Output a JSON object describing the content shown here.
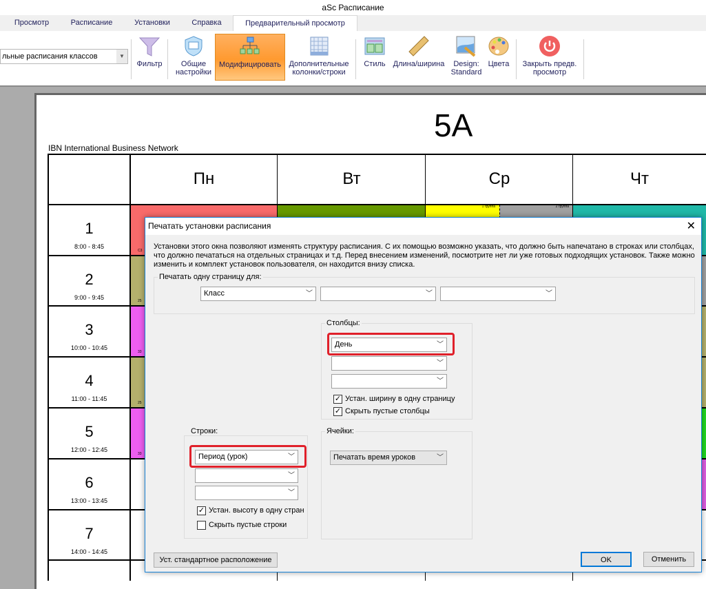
{
  "app": {
    "title": "aSc Расписание"
  },
  "tabs": [
    {
      "label": "Просмотр"
    },
    {
      "label": "Расписание"
    },
    {
      "label": "Установки"
    },
    {
      "label": "Справка"
    },
    {
      "label": "Предварительный просмотр",
      "active": true
    }
  ],
  "ribbon": {
    "combo_value": "льные расписания классов",
    "buttons": [
      {
        "label": "Фильтр",
        "icon": "filter-icon"
      },
      {
        "label": "Общие настройки",
        "icon": "shield-window-icon"
      },
      {
        "label": "Модифицировать",
        "icon": "hierarchy-icon",
        "active": true
      },
      {
        "label": "Дополнительные колонки/строки",
        "icon": "grid-icon"
      },
      {
        "label": "Стиль",
        "icon": "layout-icon"
      },
      {
        "label": "Длина/ширина",
        "icon": "ruler-icon"
      },
      {
        "label": "Design: Standard",
        "icon": "picture-pencil-icon"
      },
      {
        "label": "Цвета",
        "icon": "palette-icon"
      },
      {
        "label": "Закрыть предв. просмотр",
        "icon": "power-icon"
      }
    ]
  },
  "preview": {
    "title": "5A",
    "school": "IBN International Business Network",
    "days": [
      "Пн",
      "Вт",
      "Ср",
      "Чт"
    ],
    "periods": [
      {
        "n": "1",
        "time": "8:00 - 8:45"
      },
      {
        "n": "2",
        "time": "9:00 - 9:45"
      },
      {
        "n": "3",
        "time": "10:00 - 10:45"
      },
      {
        "n": "4",
        "time": "11:00 - 11:45"
      },
      {
        "n": "5",
        "time": "12:00 - 12:45"
      },
      {
        "n": "6",
        "time": "13:00 - 13:45"
      },
      {
        "n": "7",
        "time": "14:00 - 14:45"
      }
    ],
    "group_labels": [
      "1 группа",
      "2 группа"
    ],
    "cell_colors": {
      "mon": [
        "#f86a6a",
        "#b4b06c",
        "#ee5ef0",
        "#b4b06c",
        "#ee5ef0"
      ],
      "tue": "#669900",
      "wed": [
        "#ffff00",
        "#a0a0a0"
      ],
      "thu": "#20b8a8",
      "right": [
        "#20b8a8",
        "#a0a0a0",
        "#b4b06c",
        "#b4b06c",
        "#22d822",
        "#dd5ee0"
      ]
    },
    "small_labels": [
      "C3",
      "25",
      "33",
      "25",
      "33"
    ]
  },
  "dialog": {
    "title": "Печатать установки расписания",
    "description": "Установки этого окна позволяют изменять структуру расписания. С их помощью возможно указать, что должно быть напечатано в строках или столбцах, что должно печататься на отдельных страницах и т.д. Перед внесением изменений, посмотрите нет ли уже готовых подходящих установок. Также можно изменить и комплект установок пользователя, он находится внизу списка.",
    "page_group": {
      "label": "Печатать одну страницу для:",
      "selects": [
        "Класс",
        "",
        ""
      ]
    },
    "columns": {
      "label": "Столбцы:",
      "selects": [
        "День",
        "",
        ""
      ],
      "checks": [
        {
          "label": "Устан. ширину в одну страницу",
          "checked": true
        },
        {
          "label": "Скрыть пустые столбцы",
          "checked": true
        }
      ]
    },
    "rows": {
      "label": "Строки:",
      "selects": [
        "Период (урок)",
        "",
        ""
      ],
      "checks": [
        {
          "label": "Устан. высоту в одну стран",
          "checked": true
        },
        {
          "label": "Скрыть пустые строки",
          "checked": false
        }
      ]
    },
    "cells": {
      "label": "Ячейки:",
      "select": "Печатать время уроков"
    },
    "buttons": {
      "reset": "Уст. стандартное расположение",
      "ok": "OK",
      "cancel": "Отменить"
    },
    "highlight_color": "#e0202a"
  }
}
